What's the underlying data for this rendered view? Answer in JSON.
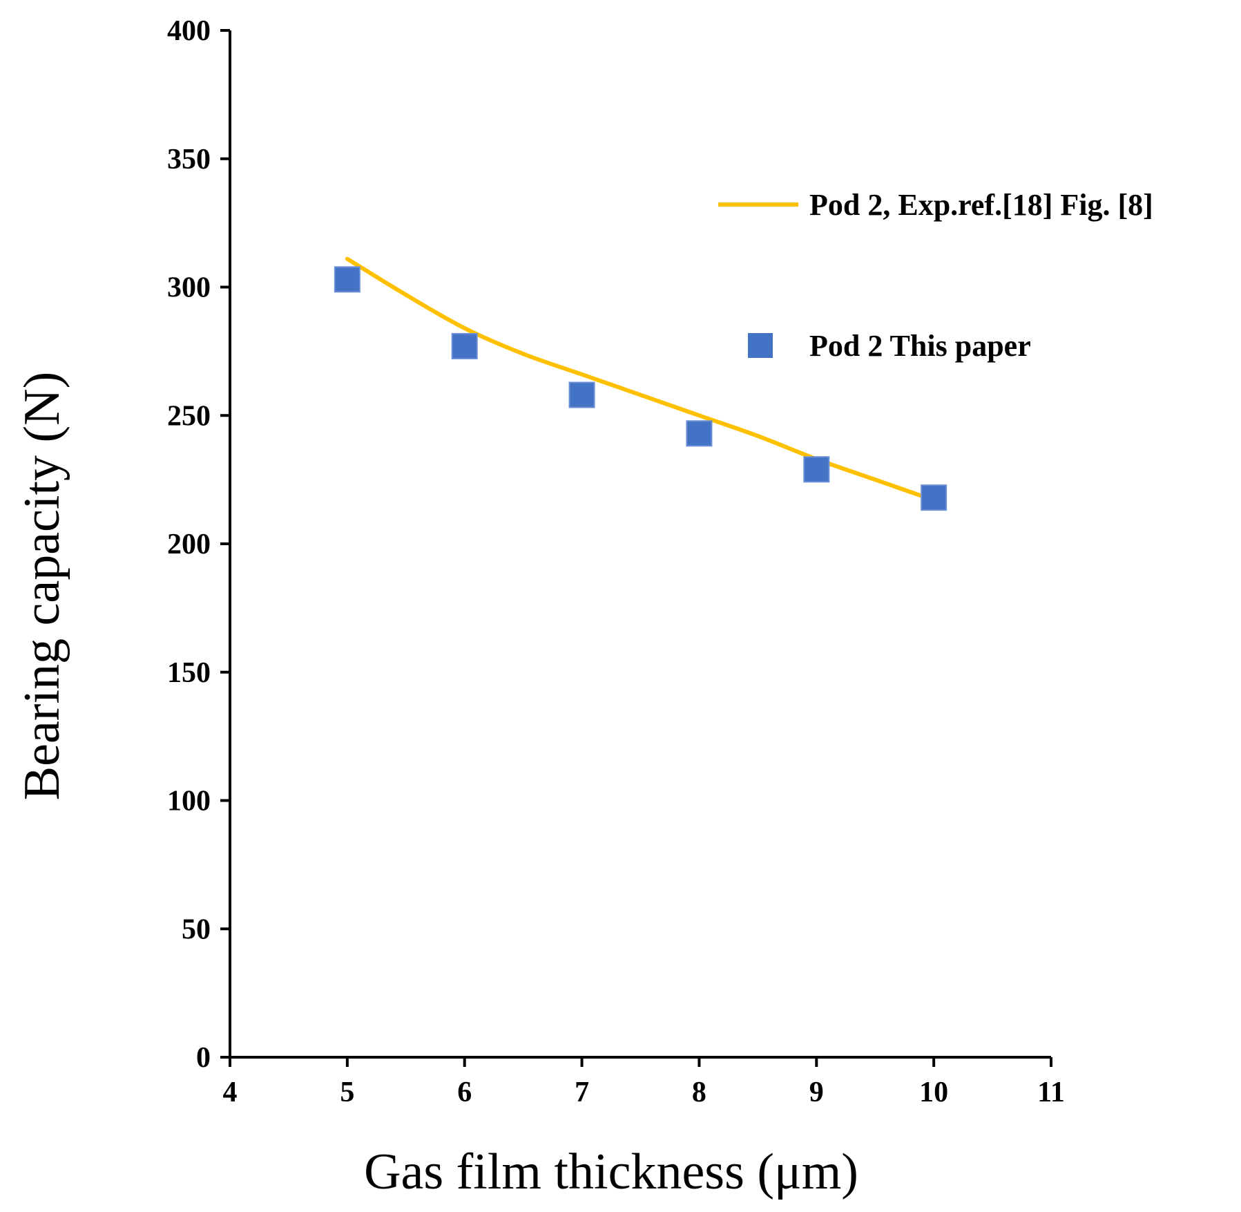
{
  "chart_data": {
    "type": "line+scatter",
    "xlabel": "Gas film thickness  (μm)",
    "ylabel": "Bearing capacity (N)",
    "xlim": [
      4,
      11
    ],
    "ylim": [
      0,
      400
    ],
    "x_ticks": [
      "4",
      "5",
      "6",
      "7",
      "8",
      "9",
      "10",
      "11"
    ],
    "y_ticks": [
      "0",
      "50",
      "100",
      "150",
      "200",
      "250",
      "300",
      "350",
      "400"
    ],
    "grid": false,
    "legend_position": "top-right",
    "series": [
      {
        "name": "Pod 2, Exp.ref.[18] Fig. [8]",
        "kind": "line",
        "color": "#FFC000",
        "x": [
          5,
          5.5,
          6,
          6.5,
          7,
          7.5,
          8,
          8.5,
          9,
          9.5,
          10
        ],
        "values": [
          311,
          297,
          284,
          274,
          266,
          258,
          250,
          242,
          233,
          225,
          217
        ]
      },
      {
        "name": "Pod 2  This paper",
        "kind": "scatter",
        "marker": "square",
        "color": "#4472C4",
        "x": [
          5,
          6,
          7,
          8,
          9,
          10
        ],
        "values": [
          303,
          277,
          258,
          243,
          229,
          218
        ]
      }
    ]
  }
}
